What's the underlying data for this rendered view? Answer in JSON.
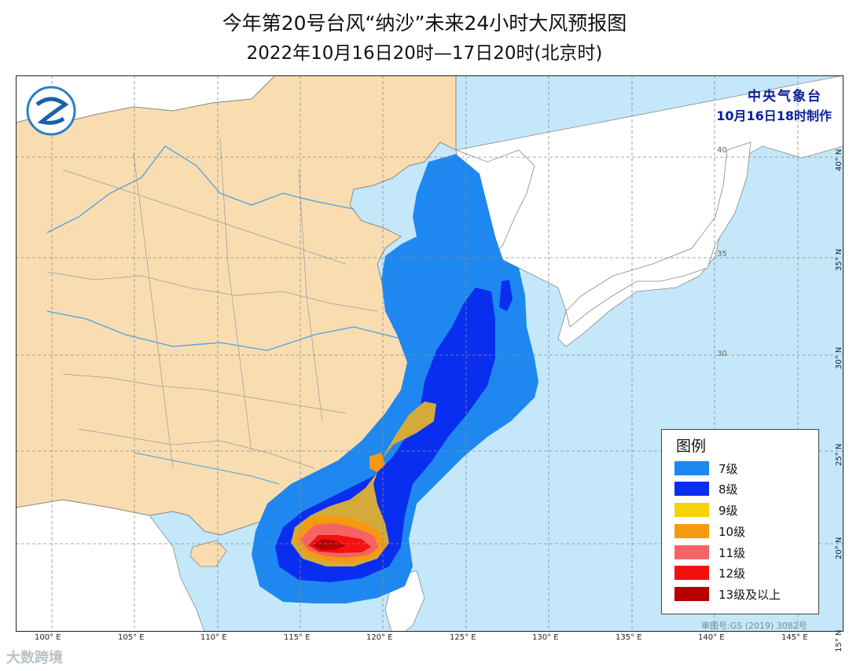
{
  "title": {
    "line1": "今年第20号台风“纳沙”未来24小时大风预报图",
    "line2": "2022年10月16日20时—17日20时(北京时)"
  },
  "agency": {
    "name": "中央气象台",
    "made": "10月16日18时制作"
  },
  "legend": {
    "title": "图例",
    "items": [
      {
        "label": "7级",
        "color": "#1e88f0"
      },
      {
        "label": "8级",
        "color": "#0a2ef0"
      },
      {
        "label": "9级",
        "color": "#f5d30a"
      },
      {
        "label": "10级",
        "color": "#f59a10"
      },
      {
        "label": "11级",
        "color": "#f56464"
      },
      {
        "label": "12级",
        "color": "#f51010"
      },
      {
        "label": "13级及以上",
        "color": "#b80000"
      }
    ]
  },
  "axes": {
    "lon_labels": [
      "100° E",
      "105° E",
      "110° E",
      "115° E",
      "120° E",
      "125° E",
      "130° E",
      "135° E",
      "140° E",
      "145° E"
    ],
    "lat_labels": [
      "40° N",
      "35° N",
      "30° N",
      "25° N",
      "20° N",
      "15° N"
    ],
    "inner_lat_labels": [
      "40",
      "35",
      "30"
    ]
  },
  "colors": {
    "land": "#f9ddb1",
    "sea": "#c4e8fa",
    "other_land": "#ffffff",
    "grid": "#8a8a8a"
  },
  "approval": "审图号:GS (2019) 3082号",
  "watermark": "大数跨境"
}
